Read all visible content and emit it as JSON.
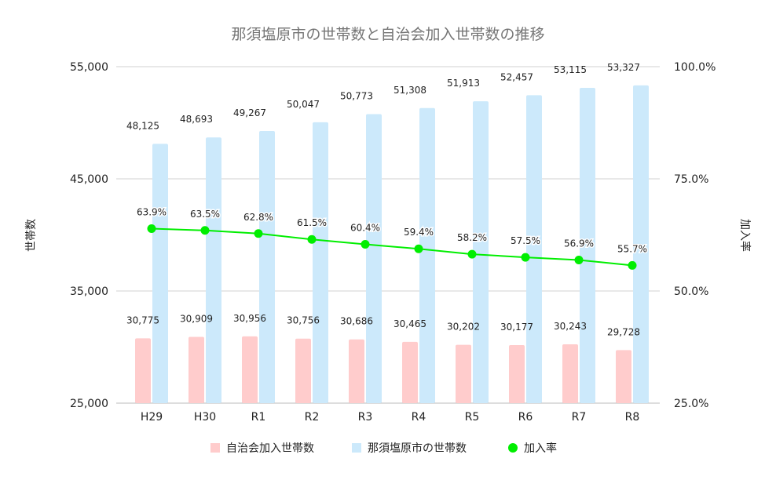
{
  "chart_data": {
    "type": "bar",
    "title": "那須塩原市の世帯数と自治会加入世帯数の推移",
    "categories": [
      "H29",
      "H30",
      "R1",
      "R2",
      "R3",
      "R4",
      "R5",
      "R6",
      "R7",
      "R8"
    ],
    "ylabel": "世帯数",
    "y2label": "加入率",
    "ylim": [
      25000,
      55000
    ],
    "yticks": [
      "25,000",
      "35,000",
      "45,000",
      "55,000"
    ],
    "y2lim": [
      25,
      100
    ],
    "y2ticks": [
      "25.0%",
      "50.0%",
      "75.0%",
      "100.0%"
    ],
    "grid": true,
    "legend_position": "bottom",
    "series": [
      {
        "name": "自治会加入世帯数",
        "type": "bar",
        "axis": "left",
        "color": "#ffcccc",
        "values": [
          30775,
          30909,
          30956,
          30756,
          30686,
          30465,
          30202,
          30177,
          30243,
          29728
        ],
        "labels": [
          "30,775",
          "30,909",
          "30,956",
          "30,756",
          "30,686",
          "30,465",
          "30,202",
          "30,177",
          "30,243",
          "29,728"
        ]
      },
      {
        "name": "那須塩原市の世帯数",
        "type": "bar",
        "axis": "left",
        "color": "#cce9fb",
        "values": [
          48125,
          48693,
          49267,
          50047,
          50773,
          51308,
          51913,
          52457,
          53115,
          53327
        ],
        "labels": [
          "48,125",
          "48,693",
          "49,267",
          "50,047",
          "50,773",
          "51,308",
          "51,913",
          "52,457",
          "53,115",
          "53,327"
        ]
      },
      {
        "name": "加入率",
        "type": "line",
        "axis": "right",
        "color": "#00ee00",
        "values": [
          63.9,
          63.5,
          62.8,
          61.5,
          60.4,
          59.4,
          58.2,
          57.5,
          56.9,
          55.7
        ],
        "labels": [
          "63.9%",
          "63.5%",
          "62.8%",
          "61.5%",
          "60.4%",
          "59.4%",
          "58.2%",
          "57.5%",
          "56.9%",
          "55.7%"
        ]
      }
    ]
  }
}
